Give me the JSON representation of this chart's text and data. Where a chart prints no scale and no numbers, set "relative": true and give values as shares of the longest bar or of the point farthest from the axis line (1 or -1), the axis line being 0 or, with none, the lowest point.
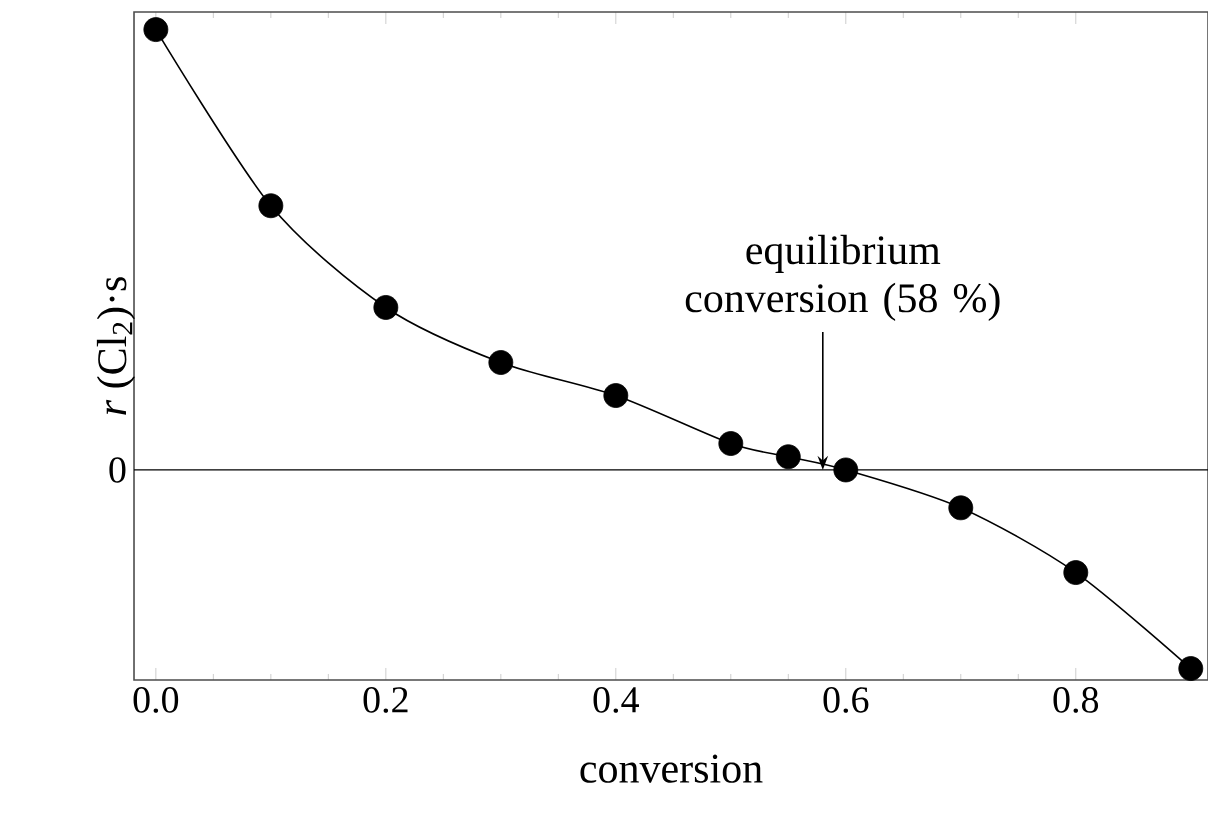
{
  "chart_data": {
    "type": "scatter",
    "relative": true,
    "xlabel": "conversion",
    "ylabel": "*r* (Cl$_{2}$)·s",
    "xlim": [
      -0.019,
      0.915
    ],
    "xticks": [
      {
        "value": 0,
        "label": "0.0"
      },
      0.2,
      0.4,
      0.6,
      0.8
    ],
    "marker": "circle",
    "grid": false,
    "x": [
      0.0,
      0.1,
      0.2,
      0.3,
      0.4,
      0.5,
      0.55,
      0.6,
      0.7,
      0.8,
      0.9
    ],
    "series": [
      {
        "color": "#000000",
        "values": [
          1.0,
          0.6,
          0.369,
          0.244,
          0.169,
          0.06,
          0.03,
          0.0,
          -0.086,
          -0.233,
          -0.451
        ]
      },
      {
        "type": "line",
        "color": "#000000",
        "marker": "none",
        "values": [
          1.0,
          0.6,
          0.369,
          0.244,
          0.169,
          0.06,
          0.03,
          0.0,
          -0.086,
          -0.233,
          -0.451
        ]
      }
    ],
    "ref_lines": [
      {
        "axis": "y",
        "value": 0,
        "label": "0"
      }
    ],
    "annotations": [
      {
        "text": "equilibrium conversion (58 %)",
        "x": 0.58,
        "y": 0
      }
    ]
  }
}
